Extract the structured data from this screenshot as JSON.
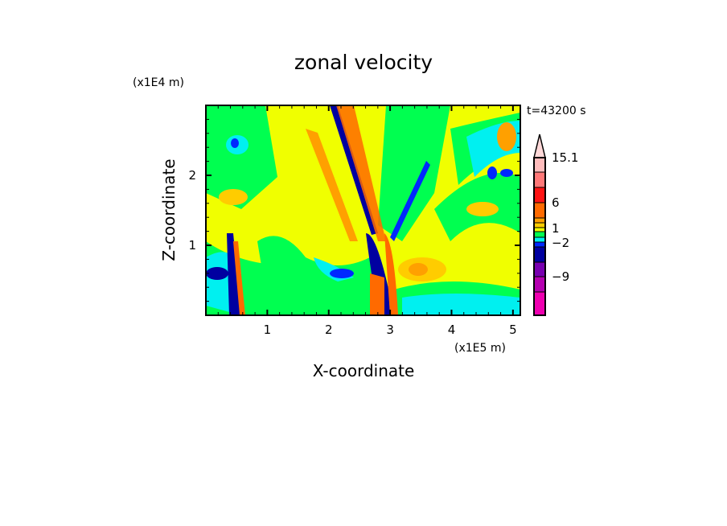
{
  "chart_data": {
    "type": "heatmap",
    "title": "zonal velocity",
    "xlabel": "X-coordinate",
    "ylabel": "Z-coordinate",
    "x_unit": "(x1E5 m)",
    "y_unit": "(x1E4 m)",
    "time_label": "t=43200 s",
    "xlim": [
      0,
      5.12
    ],
    "ylim": [
      0,
      3.0
    ],
    "x_ticks": [
      1,
      2,
      3,
      4,
      5
    ],
    "x_tick_labels": [
      "1",
      "2",
      "3",
      "4",
      "5"
    ],
    "y_ticks": [
      1,
      2
    ],
    "y_tick_labels": [
      "1",
      "2"
    ],
    "colorbar": {
      "labels": [
        {
          "value": 15.1,
          "text": "15.1"
        },
        {
          "value": 6,
          "text": "6"
        },
        {
          "value": 1,
          "text": "1"
        },
        {
          "value": -2,
          "text": "-2"
        },
        {
          "value": -9,
          "text": "-9"
        }
      ],
      "colors": [
        "#ffd8d8",
        "#ffbcbc",
        "#ff7878",
        "#ff1414",
        "#ff6a00",
        "#ffa000",
        "#ffcc00",
        "#f0ff00",
        "#00ff50",
        "#00f0f0",
        "#0028ff",
        "#0000a0",
        "#7800b0",
        "#b400b0",
        "#ee00b0"
      ]
    }
  }
}
